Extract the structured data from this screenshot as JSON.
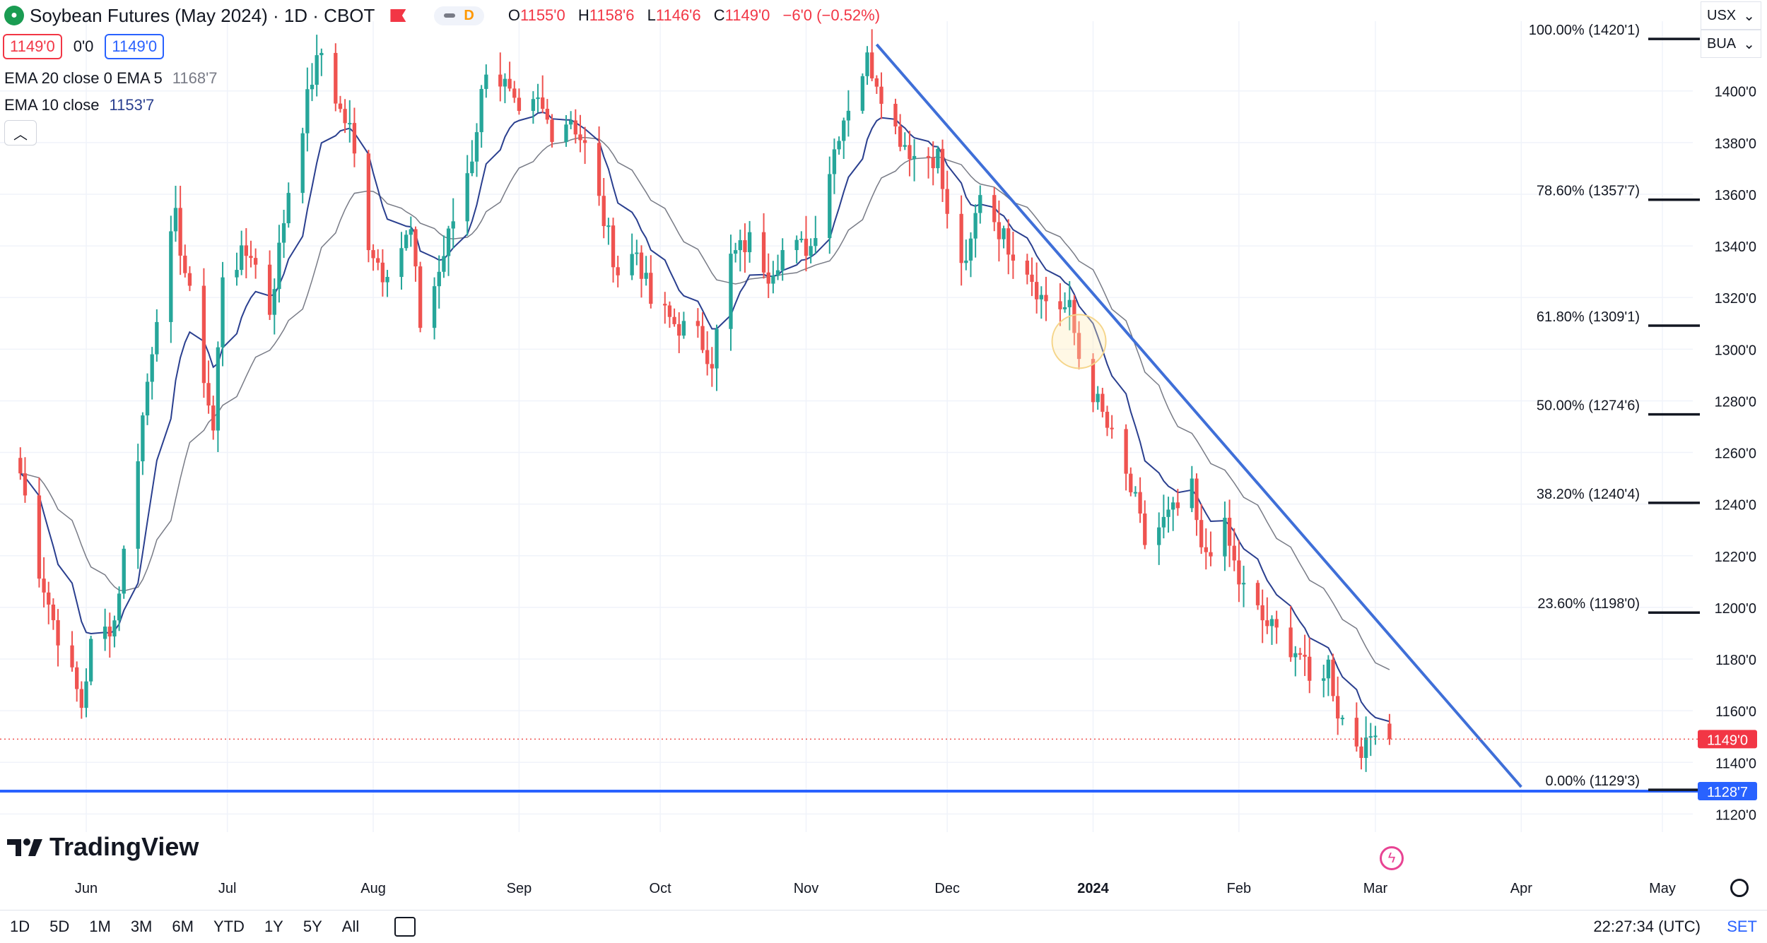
{
  "header": {
    "symbol_title": "Soybean Futures (May 2024) · 1D · CBOT",
    "interval_badge": "D",
    "ohlc": [
      {
        "key": "O",
        "value": "1155'0"
      },
      {
        "key": "H",
        "value": "1158'6"
      },
      {
        "key": "L",
        "value": "1146'6"
      },
      {
        "key": "C",
        "value": "1149'0"
      },
      {
        "key": "",
        "value": "−6'0 (−0.52%)"
      }
    ],
    "sell_price": "1149'0",
    "spread": "0'0",
    "buy_price": "1149'0"
  },
  "indicators": [
    {
      "label": "EMA 20 close 0 EMA 5",
      "value": "1168'7",
      "color": "#787b86"
    },
    {
      "label": "EMA 10 close",
      "value": "1153'7",
      "color": "#2a3f8f"
    }
  ],
  "top_right": {
    "currency": "USX",
    "unit": "BUA"
  },
  "fib_levels": [
    {
      "label": "100.00% (1420'1)",
      "price": 1420.125
    },
    {
      "label": "78.60% (1357'7)",
      "price": 1357.875
    },
    {
      "label": "61.80% (1309'1)",
      "price": 1309.125
    },
    {
      "label": "50.00% (1274'6)",
      "price": 1274.75
    },
    {
      "label": "38.20% (1240'4)",
      "price": 1240.5
    },
    {
      "label": "23.60% (1198'0)",
      "price": 1198.0
    },
    {
      "label": "0.00% (1129'3)",
      "price": 1129.375
    }
  ],
  "price_labels": {
    "last": {
      "text": "1149'0",
      "value": 1149.0,
      "color": "#f23645"
    },
    "support": {
      "text": "1128'7",
      "value": 1128.875,
      "color": "#2962ff"
    }
  },
  "trendline": {
    "from": {
      "date": "2023-11-16",
      "price": 1418.0
    },
    "to": {
      "date": "2024-04-01",
      "price": 1130.5
    }
  },
  "chart_data": {
    "type": "candlestick",
    "title": "Soybean Futures (May 2024) · 1D · CBOT",
    "xlabel": "",
    "ylabel": "",
    "ylim": [
      1113.0,
      1427.0
    ],
    "y_ticks": [
      "1120'0",
      "1140'0",
      "1160'0",
      "1180'0",
      "1200'0",
      "1220'0",
      "1240'0",
      "1260'0",
      "1280'0",
      "1300'0",
      "1320'0",
      "1340'0",
      "1360'0",
      "1380'0",
      "1400'0"
    ],
    "x_ticks": [
      "Jun",
      "Jul",
      "Aug",
      "Sep",
      "Oct",
      "Nov",
      "Dec",
      "2024",
      "Feb",
      "Mar",
      "Apr",
      "May"
    ],
    "grid": true,
    "waypoints": [
      [
        "2023-05-18",
        1252
      ],
      [
        "2023-05-22",
        1215
      ],
      [
        "2023-05-25",
        1195
      ],
      [
        "2023-05-31",
        1162
      ],
      [
        "2023-06-02",
        1185
      ],
      [
        "2023-06-07",
        1195
      ],
      [
        "2023-06-12",
        1260
      ],
      [
        "2023-06-16",
        1315
      ],
      [
        "2023-06-20",
        1350
      ],
      [
        "2023-06-22",
        1330
      ],
      [
        "2023-06-26",
        1290
      ],
      [
        "2023-06-28",
        1268
      ],
      [
        "2023-06-30",
        1330
      ],
      [
        "2023-07-06",
        1338
      ],
      [
        "2023-07-10",
        1315
      ],
      [
        "2023-07-14",
        1362
      ],
      [
        "2023-07-19",
        1405
      ],
      [
        "2023-07-21",
        1415
      ],
      [
        "2023-07-25",
        1392
      ],
      [
        "2023-07-27",
        1385
      ],
      [
        "2023-07-31",
        1342
      ],
      [
        "2023-08-03",
        1330
      ],
      [
        "2023-08-09",
        1345
      ],
      [
        "2023-08-11",
        1310
      ],
      [
        "2023-08-15",
        1330
      ],
      [
        "2023-08-18",
        1350
      ],
      [
        "2023-08-22",
        1375
      ],
      [
        "2023-08-25",
        1410
      ],
      [
        "2023-08-29",
        1402
      ],
      [
        "2023-09-01",
        1388
      ],
      [
        "2023-09-05",
        1395
      ],
      [
        "2023-09-08",
        1385
      ],
      [
        "2023-09-12",
        1390
      ],
      [
        "2023-09-15",
        1378
      ],
      [
        "2023-09-19",
        1350
      ],
      [
        "2023-09-22",
        1330
      ],
      [
        "2023-09-26",
        1338
      ],
      [
        "2023-09-29",
        1318
      ],
      [
        "2023-10-04",
        1310
      ],
      [
        "2023-10-09",
        1305
      ],
      [
        "2023-10-12",
        1296
      ],
      [
        "2023-10-16",
        1335
      ],
      [
        "2023-10-20",
        1342
      ],
      [
        "2023-10-24",
        1330
      ],
      [
        "2023-10-27",
        1338
      ],
      [
        "2023-11-02",
        1340
      ],
      [
        "2023-11-06",
        1370
      ],
      [
        "2023-11-08",
        1385
      ],
      [
        "2023-11-10",
        1395
      ],
      [
        "2023-11-14",
        1412
      ],
      [
        "2023-11-16",
        1405
      ],
      [
        "2023-11-20",
        1385
      ],
      [
        "2023-11-24",
        1375
      ],
      [
        "2023-11-29",
        1375
      ],
      [
        "2023-12-01",
        1350
      ],
      [
        "2023-12-05",
        1330
      ],
      [
        "2023-12-08",
        1362
      ],
      [
        "2023-12-13",
        1343
      ],
      [
        "2023-12-18",
        1332
      ],
      [
        "2023-12-21",
        1320
      ],
      [
        "2023-12-27",
        1315
      ],
      [
        "2023-12-29",
        1297
      ],
      [
        "2024-01-05",
        1265
      ],
      [
        "2024-01-10",
        1240
      ],
      [
        "2024-01-12",
        1225
      ],
      [
        "2024-01-17",
        1235
      ],
      [
        "2024-01-19",
        1238
      ],
      [
        "2024-01-22",
        1245
      ],
      [
        "2024-01-24",
        1220
      ],
      [
        "2024-01-29",
        1230
      ],
      [
        "2024-02-01",
        1210
      ],
      [
        "2024-02-06",
        1195
      ],
      [
        "2024-02-09",
        1190
      ],
      [
        "2024-02-14",
        1182
      ],
      [
        "2024-02-16",
        1170
      ],
      [
        "2024-02-20",
        1178
      ],
      [
        "2024-02-22",
        1160
      ],
      [
        "2024-02-26",
        1148
      ],
      [
        "2024-02-28",
        1145
      ],
      [
        "2024-02-29",
        1150
      ],
      [
        "2024-03-01",
        1155
      ],
      [
        "2024-03-04",
        1149
      ]
    ]
  }
}
